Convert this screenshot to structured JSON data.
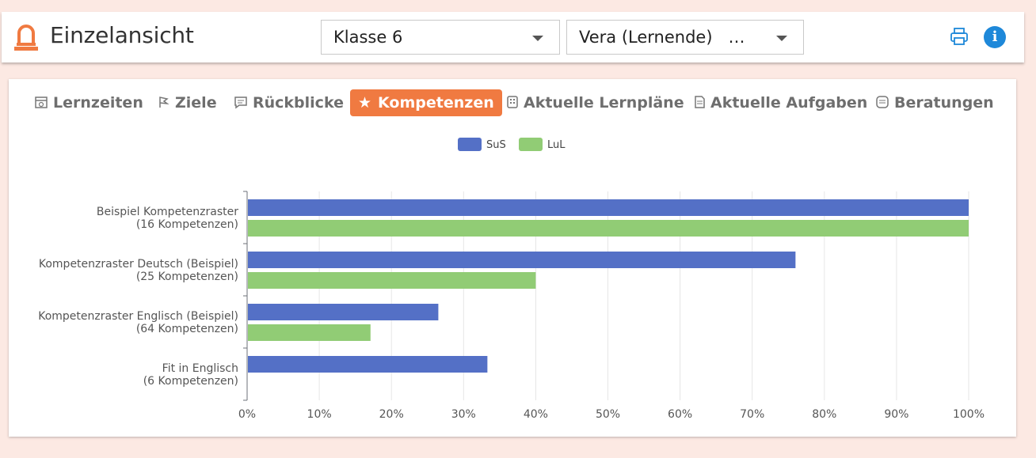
{
  "header": {
    "title": "Einzelansicht",
    "class_select": "Klasse 6",
    "person_select": "Vera (Lernende)   …"
  },
  "tabs": [
    {
      "label": "Lernzeiten",
      "icon": "calendar-icon",
      "active": false
    },
    {
      "label": "Ziele",
      "icon": "flag-icon",
      "active": false
    },
    {
      "label": "Rückblicke",
      "icon": "comment-icon",
      "active": false
    },
    {
      "label": "Kompetenzen",
      "icon": "star-icon",
      "active": true
    },
    {
      "label": "Aktuelle Lernpläne",
      "icon": "grid-icon",
      "active": false
    },
    {
      "label": "Aktuelle Aufgaben",
      "icon": "document-icon",
      "active": false
    },
    {
      "label": "Beratungen",
      "icon": "list-icon",
      "active": false
    }
  ],
  "colors": {
    "accent": "#f07a41",
    "sus": "#5470c6",
    "lul": "#91cc75",
    "info": "#1e88d9"
  },
  "chart_data": {
    "type": "bar",
    "orientation": "horizontal",
    "categories": [
      [
        "Beispiel Kompetenzraster",
        "(16 Kompetenzen)"
      ],
      [
        "Kompetenzraster Deutsch (Beispiel)",
        "(25 Kompetenzen)"
      ],
      [
        "Kompetenzraster Englisch (Beispiel)",
        "(64 Kompetenzen)"
      ],
      [
        "Fit in Englisch",
        "(6 Kompetenzen)"
      ]
    ],
    "series": [
      {
        "name": "SuS",
        "values": [
          100,
          76,
          26.5,
          33.3
        ]
      },
      {
        "name": "LuL",
        "values": [
          100,
          40,
          17.1,
          0
        ]
      }
    ],
    "xlim": [
      0,
      100
    ],
    "ticks": [
      "0%",
      "10%",
      "20%",
      "30%",
      "40%",
      "50%",
      "60%",
      "70%",
      "80%",
      "90%",
      "100%"
    ],
    "grid": true,
    "legend_position": "top-center"
  }
}
